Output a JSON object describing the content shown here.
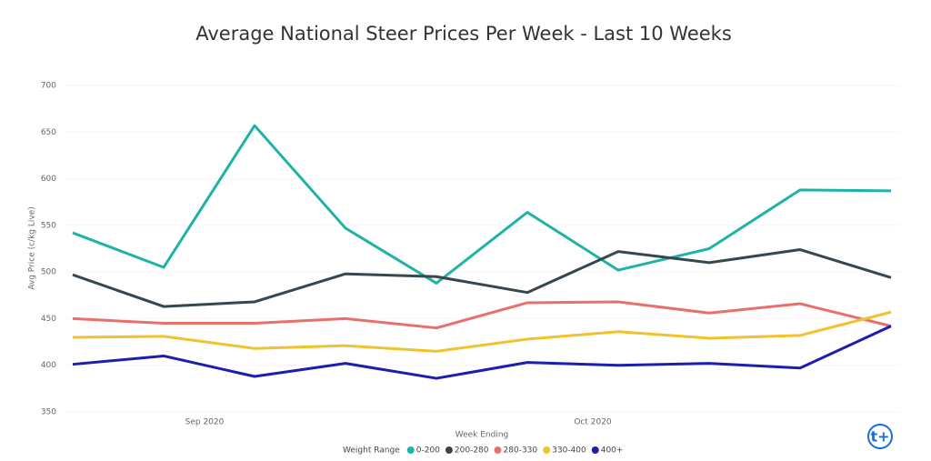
{
  "chart_data": {
    "type": "line",
    "title": "Average National Steer Prices Per Week - Last 10 Weeks",
    "x_label": "Week Ending",
    "y_label": "Avg Price (c/kg Live)",
    "legend_title": "Weight Range",
    "x": [
      0,
      1,
      2,
      3,
      4,
      5,
      6,
      7,
      8,
      9
    ],
    "xlim": [
      -0.1,
      9.1
    ],
    "xticks": [
      {
        "value": 1.45,
        "label": "Sep 2020"
      },
      {
        "value": 5.72,
        "label": "Oct 2020"
      }
    ],
    "ylim": [
      350,
      700
    ],
    "yticks": [
      350,
      400,
      450,
      500,
      550,
      600,
      650,
      700
    ],
    "grid": true,
    "series": [
      {
        "name": "0-200",
        "color": "#1fb3a7",
        "values": [
          542,
          505,
          657,
          547,
          488,
          564,
          502,
          525,
          588,
          587
        ]
      },
      {
        "name": "200-280",
        "color": "#37474f",
        "values": [
          497,
          463,
          468,
          498,
          495,
          478,
          522,
          510,
          524,
          494
        ]
      },
      {
        "name": "280-330",
        "color": "#e8706a",
        "values": [
          450,
          445,
          445,
          450,
          440,
          467,
          468,
          456,
          466,
          442
        ]
      },
      {
        "name": "330-400",
        "color": "#f2c12e",
        "values": [
          430,
          431,
          418,
          421,
          415,
          428,
          436,
          429,
          432,
          457
        ]
      },
      {
        "name": "400+",
        "color": "#1a1fae",
        "values": [
          401,
          410,
          388,
          402,
          386,
          403,
          400,
          402,
          397,
          442
        ]
      }
    ]
  }
}
